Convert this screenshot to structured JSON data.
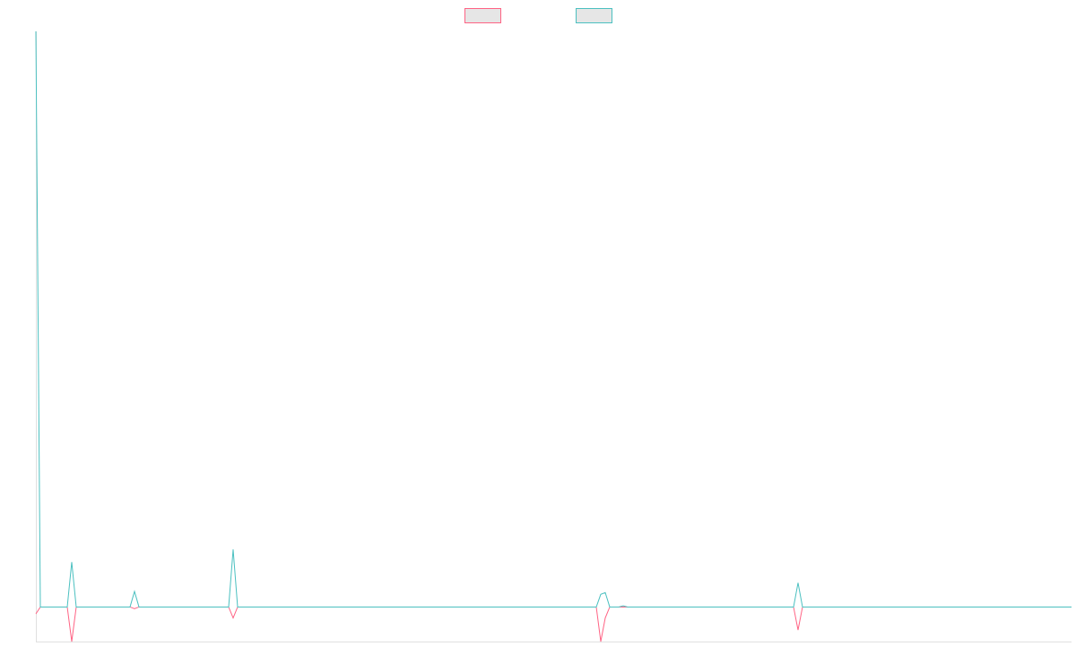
{
  "chart_data": {
    "type": "line",
    "ylim": [
      -6,
      100
    ],
    "series": [
      {
        "color": "#ff6384",
        "values": [
          -1.2,
          0,
          0,
          0,
          0,
          0,
          0,
          0,
          -6,
          0,
          0,
          0,
          0,
          0,
          0,
          0,
          0,
          0,
          0,
          0,
          0,
          0,
          -0.3,
          0,
          0,
          0,
          0,
          0,
          0,
          0,
          0,
          0,
          0,
          0,
          0,
          0,
          0,
          0,
          0,
          0,
          0,
          0,
          0,
          0,
          -1.9,
          0,
          0,
          0,
          0,
          0,
          0,
          0,
          0,
          0,
          0,
          0,
          0,
          0,
          0,
          0,
          0,
          0,
          0,
          0,
          0,
          0,
          0,
          0,
          0,
          0,
          0,
          0,
          0,
          0,
          0,
          0,
          0,
          0,
          0,
          0,
          0,
          0,
          0,
          0,
          0,
          0,
          0,
          0,
          0,
          0,
          0,
          0,
          0,
          0,
          0,
          0,
          0,
          0,
          0,
          0,
          0,
          0,
          0,
          0,
          0,
          0,
          0,
          0,
          0,
          0,
          0,
          0,
          0,
          0,
          0,
          0,
          0,
          0,
          0,
          0,
          0,
          0,
          0,
          0,
          0,
          0,
          -6,
          -1.9,
          0,
          0,
          0,
          0,
          0,
          0,
          0,
          0,
          0,
          0,
          0,
          0,
          0,
          0,
          0,
          0,
          0,
          0,
          0,
          0,
          0,
          0,
          0,
          0,
          0,
          0,
          0,
          0,
          0,
          0,
          0,
          0,
          0,
          0,
          0,
          0,
          0,
          0,
          0,
          0,
          0,
          0,
          -4,
          0,
          0,
          0,
          0,
          0,
          0,
          0,
          0,
          0,
          0,
          0,
          0,
          0,
          0,
          0,
          0,
          0,
          0,
          0,
          0,
          0,
          0,
          0,
          0,
          0,
          0,
          0,
          0,
          0,
          0,
          0,
          0,
          0,
          0,
          0,
          0,
          0,
          0,
          0,
          0,
          0,
          0,
          0,
          0,
          0,
          0,
          0,
          0,
          0,
          0,
          0,
          0,
          0,
          0,
          0,
          0,
          0,
          0,
          0,
          0,
          0
        ]
      },
      {
        "color": "#4bc0c0",
        "values": [
          100,
          0,
          0,
          0,
          0,
          0,
          0,
          0,
          7.8,
          0,
          0,
          0,
          0,
          0,
          0,
          0,
          0,
          0,
          0,
          0,
          0,
          0,
          2.7,
          0,
          0,
          0,
          0,
          0,
          0,
          0,
          0,
          0,
          0,
          0,
          0,
          0,
          0,
          0,
          0,
          0,
          0,
          0,
          0,
          0,
          10,
          0,
          0,
          0,
          0,
          0,
          0,
          0,
          0,
          0,
          0,
          0,
          0,
          0,
          0,
          0,
          0,
          0,
          0,
          0,
          0,
          0,
          0,
          0,
          0,
          0,
          0,
          0,
          0,
          0,
          0,
          0,
          0,
          0,
          0,
          0,
          0,
          0,
          0,
          0,
          0,
          0,
          0,
          0,
          0,
          0,
          0,
          0,
          0,
          0,
          0,
          0,
          0,
          0,
          0,
          0,
          0,
          0,
          0,
          0,
          0,
          0,
          0,
          0,
          0,
          0,
          0,
          0,
          0,
          0,
          0,
          0,
          0,
          0,
          0,
          0,
          0,
          0,
          0,
          0,
          0,
          0,
          2.2,
          2.5,
          0,
          0,
          0,
          0.2,
          0,
          0,
          0,
          0,
          0,
          0,
          0,
          0,
          0,
          0,
          0,
          0,
          0,
          0,
          0,
          0,
          0,
          0,
          0,
          0,
          0,
          0,
          0,
          0,
          0,
          0,
          0,
          0,
          0,
          0,
          0,
          0,
          0,
          0,
          0,
          0,
          0,
          0,
          4.2,
          0,
          0,
          0,
          0,
          0,
          0,
          0,
          0,
          0,
          0,
          0,
          0,
          0,
          0,
          0,
          0,
          0,
          0,
          0,
          0,
          0,
          0,
          0,
          0,
          0,
          0,
          0,
          0,
          0,
          0,
          0,
          0,
          0,
          0,
          0,
          0,
          0,
          0,
          0,
          0,
          0,
          0,
          0,
          0,
          0,
          0,
          0,
          0,
          0,
          0,
          0,
          0,
          0,
          0,
          0,
          0,
          0,
          0,
          0,
          0,
          0
        ]
      }
    ]
  }
}
